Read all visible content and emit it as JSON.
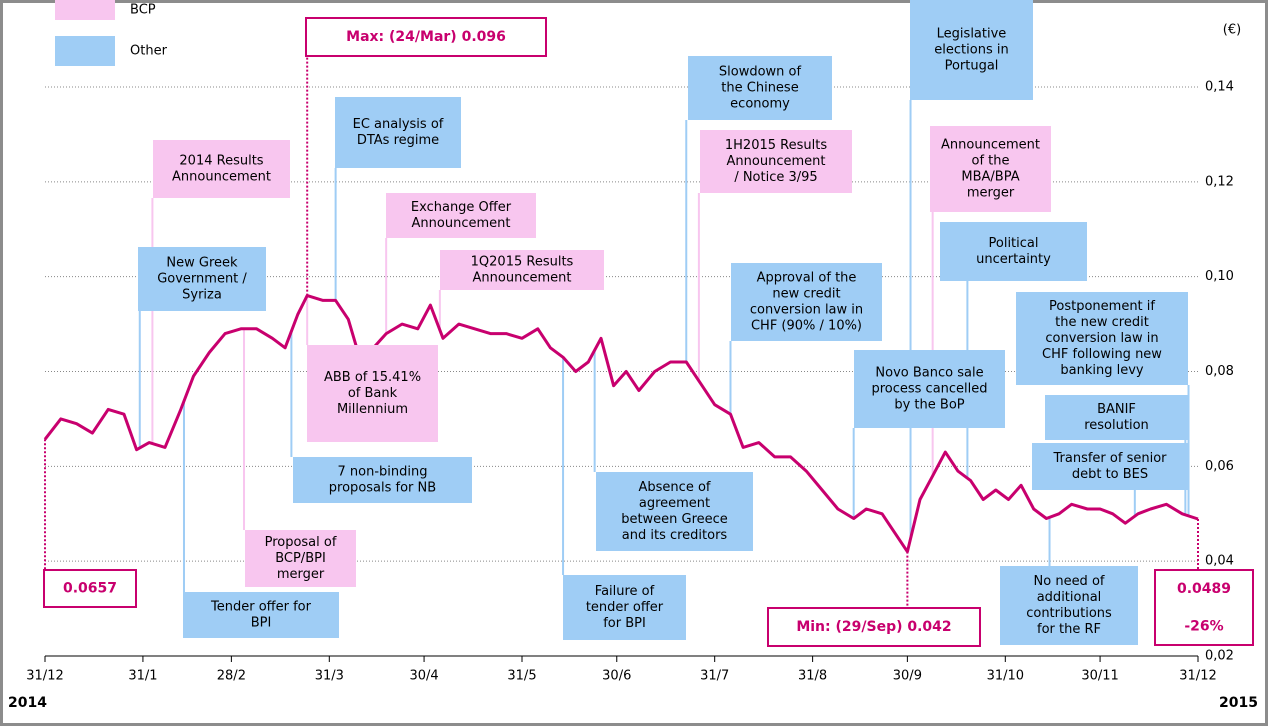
{
  "chart_data": {
    "type": "line",
    "color": "#c8006e",
    "unit_label": "(€)",
    "years": [
      "2014",
      "2015"
    ],
    "grid": true,
    "xlim": [
      "31/12",
      "31/12"
    ],
    "xticks": [
      "31/12",
      "31/1",
      "28/2",
      "31/3",
      "30/4",
      "31/5",
      "30/6",
      "31/7",
      "31/8",
      "30/9",
      "31/10",
      "30/11",
      "31/12"
    ],
    "ylim": [
      0.02,
      0.14
    ],
    "yticks": [
      {
        "value": 0.02,
        "label": "0,02"
      },
      {
        "value": 0.04,
        "label": "0,04"
      },
      {
        "value": 0.06,
        "label": "0,06"
      },
      {
        "value": 0.08,
        "label": "0,08"
      },
      {
        "value": 0.1,
        "label": "0,10"
      },
      {
        "value": 0.12,
        "label": "0,12"
      },
      {
        "value": 0.14,
        "label": "0,14"
      }
    ],
    "x": [
      "31/12",
      "5/1",
      "10/1",
      "15/1",
      "20/1",
      "25/1",
      "29/1",
      "2/2",
      "7/2",
      "12/2",
      "16/2",
      "21/2",
      "26/2",
      "3/3",
      "8/3",
      "13/3",
      "17/3",
      "21/3",
      "24/3",
      "29/3",
      "2/4",
      "6/4",
      "10/4",
      "14/4",
      "18/4",
      "23/4",
      "28/4",
      "2/5",
      "6/5",
      "11/5",
      "16/5",
      "21/5",
      "26/5",
      "31/5",
      "5/6",
      "9/6",
      "13/6",
      "17/6",
      "21/6",
      "25/6",
      "29/6",
      "3/7",
      "7/7",
      "12/7",
      "17/7",
      "22/7",
      "27/7",
      "31/7",
      "5/8",
      "9/8",
      "14/8",
      "19/8",
      "24/8",
      "29/8",
      "3/9",
      "8/9",
      "13/9",
      "17/9",
      "22/9",
      "26/9",
      "30/9",
      "4/10",
      "8/10",
      "12/10",
      "16/10",
      "20/10",
      "24/10",
      "28/10",
      "1/11",
      "5/11",
      "9/11",
      "13/11",
      "17/11",
      "21/11",
      "26/11",
      "30/11",
      "4/12",
      "8/12",
      "12/12",
      "16/12",
      "21/12",
      "26/12",
      "31/12"
    ],
    "values": [
      0.0657,
      0.07,
      0.069,
      0.067,
      0.072,
      0.071,
      0.0635,
      0.065,
      0.064,
      0.072,
      0.079,
      0.084,
      0.088,
      0.089,
      0.089,
      0.087,
      0.085,
      0.092,
      0.096,
      0.095,
      0.095,
      0.091,
      0.082,
      0.085,
      0.088,
      0.09,
      0.089,
      0.094,
      0.087,
      0.09,
      0.089,
      0.088,
      0.088,
      0.087,
      0.089,
      0.085,
      0.083,
      0.08,
      0.082,
      0.087,
      0.077,
      0.08,
      0.076,
      0.08,
      0.082,
      0.082,
      0.077,
      0.073,
      0.071,
      0.064,
      0.065,
      0.062,
      0.062,
      0.059,
      0.055,
      0.051,
      0.049,
      0.051,
      0.05,
      0.046,
      0.042,
      0.053,
      0.058,
      0.063,
      0.059,
      0.057,
      0.053,
      0.055,
      0.053,
      0.056,
      0.051,
      0.049,
      0.05,
      0.052,
      0.051,
      0.051,
      0.05,
      0.048,
      0.05,
      0.051,
      0.052,
      0.05,
      0.0489
    ],
    "legend": [
      {
        "name": "BCP",
        "color": "#f8c6ef",
        "notes": [
          {
            "lines": [
              "2014 Results",
              "Announcement"
            ],
            "date": "3/2"
          },
          {
            "lines": [
              "Exchange Offer",
              "Announcement"
            ],
            "date": "18/4"
          },
          {
            "lines": [
              "1Q2015 Results",
              "Announcement"
            ],
            "date": "5/5"
          },
          {
            "lines": [
              "1H2015 Results",
              "Announcement",
              "/ Notice 3/95"
            ],
            "date": "26/7"
          },
          {
            "lines": [
              "Announcement",
              "of the",
              "MBA/BPA",
              "merger"
            ],
            "date": "8/10"
          },
          {
            "lines": [
              "Proposal of",
              "BCP/BPI",
              "merger"
            ],
            "date": "4/3"
          },
          {
            "lines": [
              "ABB of 15.41%",
              "of Bank",
              "Millennium"
            ],
            "date": "24/3"
          }
        ]
      },
      {
        "name": "Other",
        "color": "#9fcdf5",
        "notes": [
          {
            "lines": [
              "New Greek",
              "Government /",
              "Syriza"
            ],
            "date": "30/1"
          },
          {
            "lines": [
              "EC analysis of",
              "DTAs regime"
            ],
            "date": "2/4"
          },
          {
            "lines": [
              "Slowdown of",
              "the Chinese",
              "economy"
            ],
            "date": "22/7"
          },
          {
            "lines": [
              "Approval of the",
              "new credit",
              "conversion law in",
              "CHF (90% / 10%)"
            ],
            "date": "5/8"
          },
          {
            "lines": [
              "Legislative",
              "elections in",
              "Portugal"
            ],
            "date": "1/10"
          },
          {
            "lines": [
              "Political",
              "uncertainty"
            ],
            "date": "19/10"
          },
          {
            "lines": [
              "Postponement if",
              "the new credit",
              "conversion law in",
              "CHF following new",
              "banking levy"
            ],
            "date": "28/12"
          },
          {
            "lines": [
              "BANIF",
              "resolution"
            ],
            "date": "27/12"
          },
          {
            "lines": [
              "Transfer of senior",
              "debt to BES"
            ],
            "date": "11/12"
          },
          {
            "lines": [
              "Novo Banco sale",
              "process cancelled",
              "by the BoP"
            ],
            "date": "13/9"
          },
          {
            "lines": [
              "7 non-binding",
              "proposals for  NB"
            ],
            "date": "19/3"
          },
          {
            "lines": [
              "Absence of",
              "agreement",
              "between Greece",
              "and its creditors"
            ],
            "date": "23/6"
          },
          {
            "lines": [
              "Tender offer for",
              "BPI"
            ],
            "date": "13/2"
          },
          {
            "lines": [
              "Failure of",
              "tender offer",
              "for BPI"
            ],
            "date": "13/6"
          },
          {
            "lines": [
              "No need of",
              "additional",
              "contributions",
              "for the RF"
            ],
            "date": "14/11"
          }
        ]
      }
    ],
    "callouts": [
      {
        "lines": [
          "Max: (24/Mar) 0.096"
        ]
      },
      {
        "lines": [
          "0.0657"
        ]
      },
      {
        "lines": [
          "Min: (29/Sep) 0.042"
        ]
      },
      {
        "lines": [
          "0.0489",
          "-26%"
        ]
      }
    ]
  }
}
